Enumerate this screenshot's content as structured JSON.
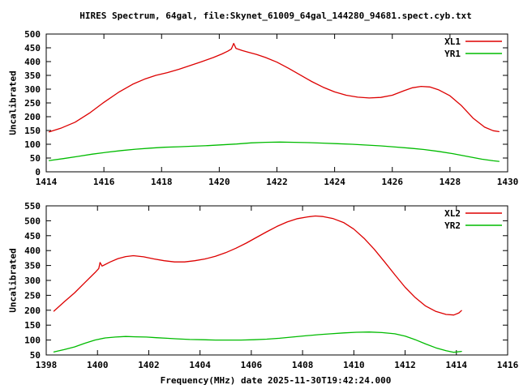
{
  "title": "HIRES Spectrum, 64gal, file:Skynet_61009_64gal_144280_94681.spect.cyb.txt",
  "xlabel": "Frequency(MHz) date 2025-11-30T19:42:24.000",
  "colors": {
    "series_red": "#dd0000",
    "series_green": "#00bb00",
    "axis": "#000000",
    "background": "#ffffff"
  },
  "chart_data": [
    {
      "type": "line",
      "panel": "top",
      "ylabel": "Uncalibrated",
      "xlim": [
        1414,
        1430
      ],
      "ylim": [
        0,
        500
      ],
      "xticks": [
        1414,
        1416,
        1418,
        1420,
        1422,
        1424,
        1426,
        1428,
        1430
      ],
      "yticks": [
        0,
        50,
        100,
        150,
        200,
        250,
        300,
        350,
        400,
        450,
        500
      ],
      "grid": false,
      "legend_position": "top-right-inside",
      "series": [
        {
          "name": "XL1",
          "color": "#dd0000",
          "points": [
            [
              1414.1,
              145
            ],
            [
              1414.5,
              158
            ],
            [
              1415,
              180
            ],
            [
              1415.5,
              213
            ],
            [
              1416,
              252
            ],
            [
              1416.5,
              288
            ],
            [
              1417,
              318
            ],
            [
              1417.4,
              336
            ],
            [
              1417.8,
              350
            ],
            [
              1418.2,
              360
            ],
            [
              1418.6,
              372
            ],
            [
              1419,
              386
            ],
            [
              1419.4,
              400
            ],
            [
              1419.8,
              415
            ],
            [
              1420.1,
              428
            ],
            [
              1420.3,
              438
            ],
            [
              1420.42,
              446
            ],
            [
              1420.5,
              466
            ],
            [
              1420.58,
              448
            ],
            [
              1420.8,
              440
            ],
            [
              1421,
              434
            ],
            [
              1421.3,
              426
            ],
            [
              1421.6,
              415
            ],
            [
              1422,
              398
            ],
            [
              1422.4,
              376
            ],
            [
              1422.8,
              352
            ],
            [
              1423.2,
              328
            ],
            [
              1423.6,
              307
            ],
            [
              1424,
              290
            ],
            [
              1424.4,
              278
            ],
            [
              1424.8,
              271
            ],
            [
              1425.2,
              268
            ],
            [
              1425.6,
              270
            ],
            [
              1426,
              278
            ],
            [
              1426.4,
              294
            ],
            [
              1426.7,
              305
            ],
            [
              1427,
              310
            ],
            [
              1427.3,
              308
            ],
            [
              1427.6,
              298
            ],
            [
              1428,
              276
            ],
            [
              1428.4,
              240
            ],
            [
              1428.8,
              195
            ],
            [
              1429.2,
              162
            ],
            [
              1429.5,
              149
            ],
            [
              1429.7,
              146
            ]
          ]
        },
        {
          "name": "YR1",
          "color": "#00bb00",
          "points": [
            [
              1414.1,
              41
            ],
            [
              1414.6,
              48
            ],
            [
              1415.1,
              56
            ],
            [
              1415.6,
              64
            ],
            [
              1416.1,
              71
            ],
            [
              1416.6,
              77
            ],
            [
              1417.1,
              82
            ],
            [
              1417.6,
              86
            ],
            [
              1418.1,
              89
            ],
            [
              1418.6,
              91
            ],
            [
              1419.1,
              93
            ],
            [
              1419.6,
              95
            ],
            [
              1420.1,
              98
            ],
            [
              1420.6,
              101
            ],
            [
              1421.1,
              105
            ],
            [
              1421.6,
              107
            ],
            [
              1422.1,
              108
            ],
            [
              1422.6,
              107
            ],
            [
              1423.1,
              106
            ],
            [
              1423.6,
              104
            ],
            [
              1424.1,
              102
            ],
            [
              1424.6,
              100
            ],
            [
              1425.1,
              97
            ],
            [
              1425.6,
              94
            ],
            [
              1426.1,
              90
            ],
            [
              1426.6,
              86
            ],
            [
              1427.1,
              81
            ],
            [
              1427.6,
              74
            ],
            [
              1428.1,
              66
            ],
            [
              1428.6,
              56
            ],
            [
              1429.1,
              46
            ],
            [
              1429.5,
              40
            ],
            [
              1429.7,
              38
            ]
          ]
        }
      ]
    },
    {
      "type": "line",
      "panel": "bottom",
      "ylabel": "Uncalibrated",
      "xlim": [
        1398,
        1416
      ],
      "ylim": [
        50,
        550
      ],
      "xticks": [
        1398,
        1400,
        1402,
        1404,
        1406,
        1408,
        1410,
        1412,
        1414,
        1416
      ],
      "yticks": [
        50,
        100,
        150,
        200,
        250,
        300,
        350,
        400,
        450,
        500,
        550
      ],
      "grid": false,
      "legend_position": "top-right-inside",
      "series": [
        {
          "name": "XL2",
          "color": "#dd0000",
          "points": [
            [
              1398.3,
              197
            ],
            [
              1398.7,
              228
            ],
            [
              1399.1,
              258
            ],
            [
              1399.5,
              292
            ],
            [
              1399.9,
              326
            ],
            [
              1400.05,
              340
            ],
            [
              1400.1,
              360
            ],
            [
              1400.18,
              348
            ],
            [
              1400.5,
              362
            ],
            [
              1400.8,
              373
            ],
            [
              1401.1,
              380
            ],
            [
              1401.4,
              383
            ],
            [
              1401.8,
              379
            ],
            [
              1402.2,
              372
            ],
            [
              1402.6,
              366
            ],
            [
              1403,
              362
            ],
            [
              1403.4,
              362
            ],
            [
              1403.8,
              366
            ],
            [
              1404.2,
              372
            ],
            [
              1404.6,
              381
            ],
            [
              1405,
              393
            ],
            [
              1405.4,
              408
            ],
            [
              1405.8,
              425
            ],
            [
              1406.2,
              444
            ],
            [
              1406.6,
              463
            ],
            [
              1407,
              481
            ],
            [
              1407.4,
              496
            ],
            [
              1407.8,
              507
            ],
            [
              1408.2,
              513
            ],
            [
              1408.5,
              516
            ],
            [
              1408.8,
              514
            ],
            [
              1409.2,
              507
            ],
            [
              1409.6,
              494
            ],
            [
              1410,
              472
            ],
            [
              1410.4,
              441
            ],
            [
              1410.8,
              404
            ],
            [
              1411.2,
              362
            ],
            [
              1411.6,
              319
            ],
            [
              1412,
              277
            ],
            [
              1412.4,
              242
            ],
            [
              1412.8,
              214
            ],
            [
              1413.2,
              196
            ],
            [
              1413.6,
              186
            ],
            [
              1413.9,
              184
            ],
            [
              1414.1,
              191
            ],
            [
              1414.2,
              199
            ]
          ]
        },
        {
          "name": "YR2",
          "color": "#00bb00",
          "points": [
            [
              1398.3,
              60
            ],
            [
              1398.7,
              68
            ],
            [
              1399.1,
              77
            ],
            [
              1399.5,
              89
            ],
            [
              1399.9,
              100
            ],
            [
              1400.3,
              107
            ],
            [
              1400.7,
              110
            ],
            [
              1401.1,
              112
            ],
            [
              1401.5,
              111
            ],
            [
              1401.9,
              110
            ],
            [
              1402.3,
              108
            ],
            [
              1402.7,
              106
            ],
            [
              1403.1,
              104
            ],
            [
              1403.6,
              102
            ],
            [
              1404.1,
              101
            ],
            [
              1404.6,
              100
            ],
            [
              1405.1,
              100
            ],
            [
              1405.6,
              100
            ],
            [
              1406.1,
              101
            ],
            [
              1406.6,
              103
            ],
            [
              1407.1,
              106
            ],
            [
              1407.6,
              110
            ],
            [
              1408.1,
              114
            ],
            [
              1408.6,
              118
            ],
            [
              1409.1,
              121
            ],
            [
              1409.6,
              124
            ],
            [
              1410.1,
              126
            ],
            [
              1410.6,
              127
            ],
            [
              1411.1,
              125
            ],
            [
              1411.6,
              121
            ],
            [
              1412,
              113
            ],
            [
              1412.4,
              101
            ],
            [
              1412.8,
              87
            ],
            [
              1413.2,
              74
            ],
            [
              1413.6,
              64
            ],
            [
              1413.9,
              59
            ],
            [
              1414.2,
              62
            ]
          ]
        }
      ]
    }
  ]
}
